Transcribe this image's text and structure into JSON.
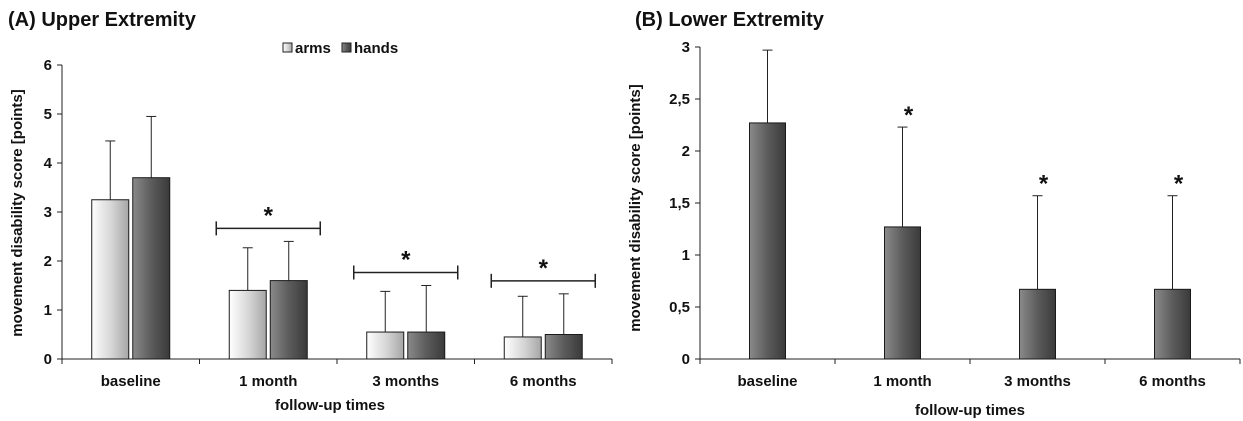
{
  "chart_data": [
    {
      "type": "bar",
      "title": "(A) Upper Extremity",
      "xlabel": "follow-up times",
      "ylabel": "movement disability score [points]",
      "ylim": [
        0,
        6
      ],
      "yticks": [
        "0",
        "1",
        "2",
        "3",
        "4",
        "5",
        "6"
      ],
      "categories": [
        "baseline",
        "1 month",
        "3 months",
        "6 months"
      ],
      "legend_position": "top-center",
      "series": [
        {
          "name": "arms",
          "color": "#c8c8c8",
          "values": [
            3.25,
            1.4,
            0.55,
            0.45
          ],
          "errors": [
            1.2,
            0.87,
            0.83,
            0.83
          ]
        },
        {
          "name": "hands",
          "color": "#5a5a5a",
          "values": [
            3.7,
            1.6,
            0.55,
            0.5
          ],
          "errors": [
            1.25,
            0.8,
            0.95,
            0.83
          ]
        }
      ],
      "significance": [
        {
          "category": "1 month",
          "marker": "*"
        },
        {
          "category": "3 months",
          "marker": "*"
        },
        {
          "category": "6 months",
          "marker": "*"
        }
      ]
    },
    {
      "type": "bar",
      "title": "(B) Lower Extremity",
      "xlabel": "follow-up times",
      "ylabel": "movement disability score [points]",
      "ylim": [
        0,
        3
      ],
      "yticks": [
        "0",
        "0,5",
        "1",
        "1,5",
        "2",
        "2,5",
        "3"
      ],
      "categories": [
        "baseline",
        "1 month",
        "3 months",
        "6 months"
      ],
      "series": [
        {
          "color": "#5a5a5a",
          "values": [
            2.27,
            1.27,
            0.67,
            0.67
          ],
          "errors": [
            0.7,
            0.96,
            0.9,
            0.9
          ]
        }
      ],
      "significance": [
        {
          "category": "1 month",
          "marker": "*"
        },
        {
          "category": "3 months",
          "marker": "*"
        },
        {
          "category": "6 months",
          "marker": "*"
        }
      ]
    }
  ]
}
